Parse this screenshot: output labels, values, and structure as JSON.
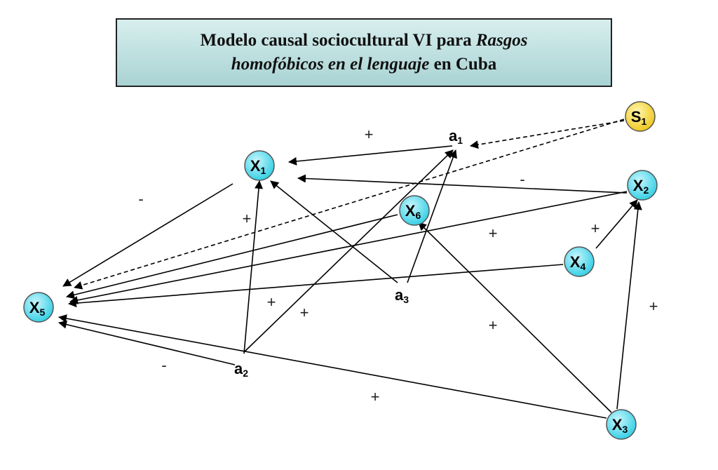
{
  "title": {
    "line1_normal": "Modelo causal sociocultural VI para ",
    "line1_italic": "Rasgos",
    "line2_italic": "homofóbicos en el lenguaje",
    "line2_normal": " en Cuba"
  },
  "colors": {
    "node_fill": "#38d0e6",
    "node_highlight": "#c8f6fc",
    "s_fill": "#f0c820",
    "s_highlight": "#fff7b0",
    "title_bg_top": "#d8eeee",
    "title_bg_bottom": "#a9d3d3"
  },
  "nodes": [
    {
      "id": "X1",
      "letter": "X",
      "sub": "1"
    },
    {
      "id": "X2",
      "letter": "X",
      "sub": "2"
    },
    {
      "id": "X3",
      "letter": "X",
      "sub": "3"
    },
    {
      "id": "X4",
      "letter": "X",
      "sub": "4"
    },
    {
      "id": "X5",
      "letter": "X",
      "sub": "5"
    },
    {
      "id": "X6",
      "letter": "X",
      "sub": "6"
    },
    {
      "id": "S1",
      "letter": "S",
      "sub": "1"
    }
  ],
  "aux_nodes": [
    {
      "id": "a1",
      "letter": "a",
      "sub": "1"
    },
    {
      "id": "a2",
      "letter": "a",
      "sub": "2"
    },
    {
      "id": "a3",
      "letter": "a",
      "sub": "3"
    }
  ],
  "edges": [
    {
      "from": "a1",
      "to": "X1",
      "style": "solid"
    },
    {
      "from": "S1",
      "to": "a1",
      "style": "dashed"
    },
    {
      "from": "S1",
      "to": "X5",
      "style": "dashed"
    },
    {
      "from": "X2",
      "to": "X1",
      "style": "solid"
    },
    {
      "from": "X1",
      "to": "X5",
      "style": "solid"
    },
    {
      "from": "X6",
      "to": "X5",
      "style": "solid"
    },
    {
      "from": "X2",
      "to": "X5",
      "style": "solid"
    },
    {
      "from": "X4",
      "to": "X5",
      "style": "solid"
    },
    {
      "from": "X4",
      "to": "X2",
      "style": "solid"
    },
    {
      "from": "X3",
      "to": "X2",
      "style": "solid"
    },
    {
      "from": "X3",
      "to": "X6",
      "style": "solid"
    },
    {
      "from": "X3",
      "to": "X5",
      "style": "solid"
    },
    {
      "from": "a2",
      "to": "X5",
      "style": "solid"
    },
    {
      "from": "a2",
      "to": "X1",
      "style": "solid"
    },
    {
      "from": "a2",
      "to": "a1",
      "style": "solid"
    },
    {
      "from": "a3",
      "to": "X1",
      "style": "solid"
    },
    {
      "from": "a3",
      "to": "a1",
      "style": "solid"
    }
  ],
  "signs": [
    "+",
    "-",
    "-",
    "+",
    "+",
    "+",
    "+",
    "+",
    "+",
    "+",
    "-",
    "+"
  ]
}
